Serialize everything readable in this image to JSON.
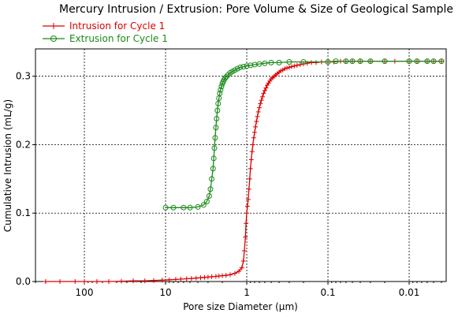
{
  "chart_data": {
    "type": "line",
    "title": "Mercury Intrusion / Extrusion: Pore Volume & Size of Geological Sample",
    "xlabel": "Pore size Diameter (µm)",
    "ylabel": "Cumulative Intrusion (mL/g)",
    "x_scale": "log",
    "x_reversed": true,
    "xlim": [
      400,
      0.0035
    ],
    "ylim": [
      0,
      0.34
    ],
    "x_ticks": [
      100,
      10,
      1,
      0.1,
      0.01
    ],
    "x_tick_labels": [
      "100",
      "10",
      "1",
      "0.1",
      "0.01"
    ],
    "y_ticks": [
      0.0,
      0.1,
      0.2,
      0.3
    ],
    "y_tick_labels": [
      "0.0",
      "0.1",
      "0.2",
      "0.3"
    ],
    "grid": true,
    "legend_position": "top-left",
    "series": [
      {
        "name": "Intrusion for Cycle 1",
        "color": "#dd0000",
        "marker": "plus",
        "x": [
          300,
          200,
          130,
          100,
          70,
          50,
          35,
          25,
          18,
          14,
          11,
          9,
          7.5,
          6.5,
          5.5,
          4.8,
          4.2,
          3.7,
          3.3,
          3.0,
          2.7,
          2.4,
          2.2,
          2.0,
          1.8,
          1.6,
          1.4,
          1.25,
          1.15,
          1.1,
          1.07,
          1.04,
          1.02,
          1.0,
          0.98,
          0.96,
          0.94,
          0.92,
          0.9,
          0.88,
          0.86,
          0.84,
          0.82,
          0.8,
          0.78,
          0.76,
          0.74,
          0.72,
          0.7,
          0.68,
          0.66,
          0.64,
          0.62,
          0.6,
          0.58,
          0.56,
          0.54,
          0.52,
          0.5,
          0.48,
          0.46,
          0.44,
          0.42,
          0.4,
          0.38,
          0.36,
          0.34,
          0.32,
          0.3,
          0.28,
          0.26,
          0.24,
          0.22,
          0.2,
          0.18,
          0.16,
          0.14,
          0.12,
          0.1,
          0.085,
          0.07,
          0.06,
          0.05,
          0.04,
          0.03,
          0.02,
          0.015,
          0.01,
          0.008,
          0.006,
          0.005,
          0.004
        ],
        "y": [
          0.0,
          0.0,
          0.0,
          0.0,
          0.0,
          0.0,
          0.0005,
          0.001,
          0.001,
          0.0015,
          0.002,
          0.0025,
          0.003,
          0.0035,
          0.004,
          0.0045,
          0.005,
          0.0055,
          0.006,
          0.0065,
          0.007,
          0.0075,
          0.008,
          0.0085,
          0.009,
          0.01,
          0.012,
          0.015,
          0.02,
          0.03,
          0.045,
          0.065,
          0.085,
          0.1,
          0.11,
          0.12,
          0.135,
          0.15,
          0.165,
          0.178,
          0.19,
          0.2,
          0.21,
          0.218,
          0.226,
          0.234,
          0.241,
          0.248,
          0.254,
          0.26,
          0.265,
          0.27,
          0.275,
          0.279,
          0.283,
          0.287,
          0.29,
          0.293,
          0.296,
          0.298,
          0.3,
          0.302,
          0.304,
          0.306,
          0.308,
          0.309,
          0.311,
          0.312,
          0.313,
          0.314,
          0.315,
          0.316,
          0.317,
          0.318,
          0.319,
          0.32,
          0.32,
          0.321,
          0.321,
          0.321,
          0.322,
          0.322,
          0.322,
          0.322,
          0.322,
          0.322,
          0.322,
          0.322,
          0.322,
          0.322,
          0.322,
          0.322
        ]
      },
      {
        "name": "Extrusion for Cycle 1",
        "color": "#1a8a1a",
        "marker": "circle",
        "x": [
          10,
          8,
          6,
          5,
          4,
          3.4,
          3.1,
          2.9,
          2.8,
          2.7,
          2.6,
          2.55,
          2.5,
          2.45,
          2.4,
          2.35,
          2.3,
          2.25,
          2.2,
          2.15,
          2.1,
          2.05,
          2.0,
          1.95,
          1.9,
          1.85,
          1.8,
          1.7,
          1.6,
          1.5,
          1.4,
          1.3,
          1.2,
          1.1,
          1.0,
          0.9,
          0.8,
          0.7,
          0.6,
          0.5,
          0.4,
          0.3,
          0.2,
          0.1,
          0.08,
          0.06,
          0.05,
          0.04,
          0.03,
          0.02,
          0.01,
          0.008,
          0.006,
          0.005,
          0.004
        ],
        "y": [
          0.108,
          0.108,
          0.108,
          0.108,
          0.109,
          0.112,
          0.117,
          0.125,
          0.135,
          0.15,
          0.165,
          0.18,
          0.195,
          0.21,
          0.225,
          0.238,
          0.25,
          0.26,
          0.268,
          0.275,
          0.28,
          0.285,
          0.289,
          0.292,
          0.295,
          0.297,
          0.299,
          0.302,
          0.305,
          0.307,
          0.309,
          0.311,
          0.313,
          0.314,
          0.315,
          0.316,
          0.317,
          0.318,
          0.319,
          0.32,
          0.32,
          0.321,
          0.321,
          0.321,
          0.322,
          0.322,
          0.322,
          0.322,
          0.322,
          0.322,
          0.322,
          0.322,
          0.322,
          0.322,
          0.322
        ]
      }
    ]
  }
}
